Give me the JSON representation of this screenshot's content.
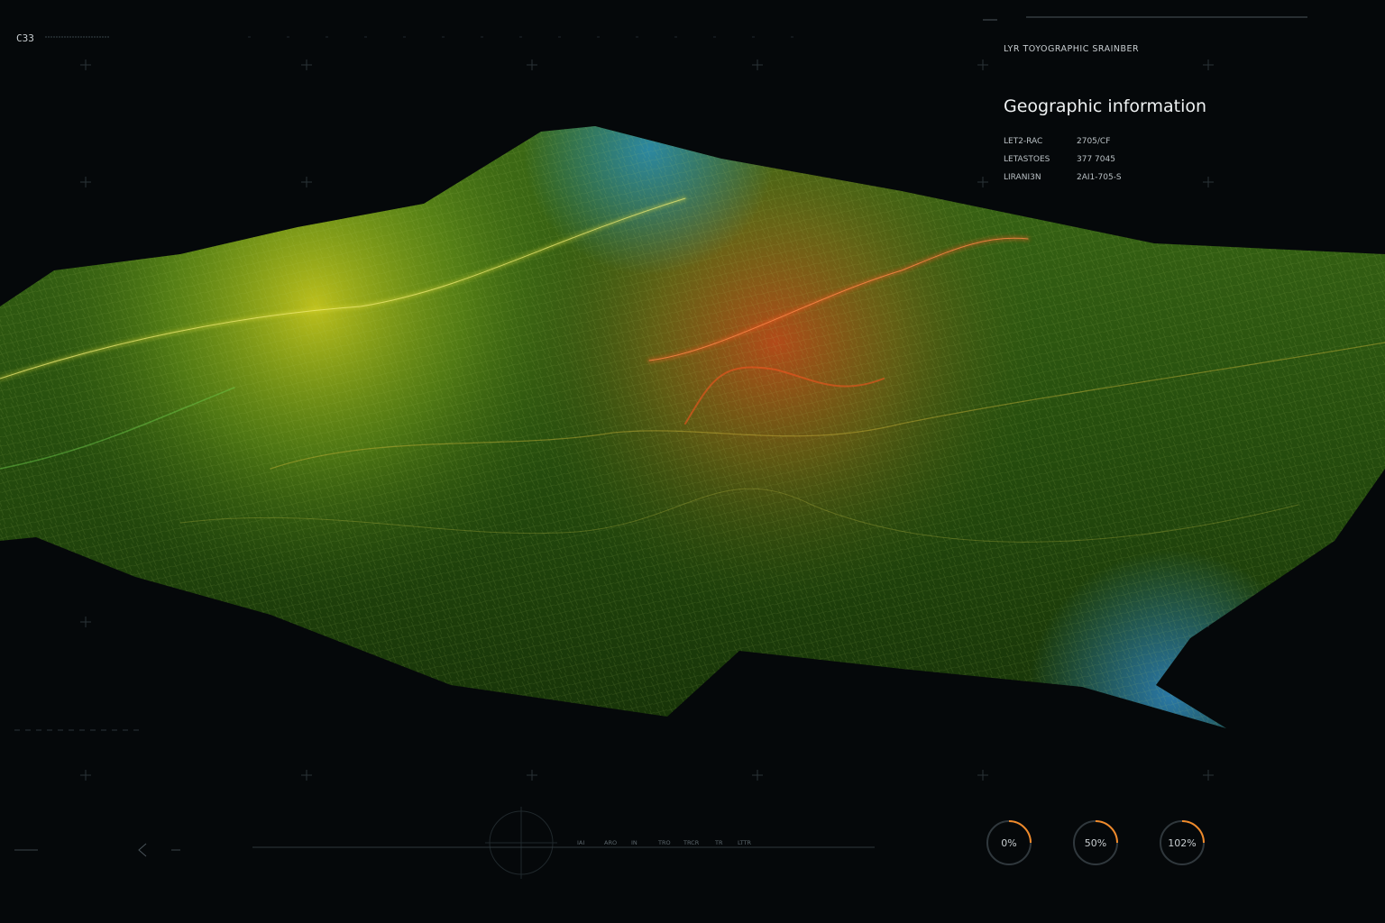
{
  "header": {
    "code": "C33",
    "subtitle": "LYR TOYOGRAPHIC SRAINBER"
  },
  "panel": {
    "title": "Geographic information",
    "rows": [
      [
        "LET2-RAC",
        "2705/CF"
      ],
      [
        "LETASTOES",
        "377 7045"
      ],
      [
        "LIRANI3N",
        "2AI1-705-S"
      ]
    ]
  },
  "gauges": [
    {
      "label": "0%"
    },
    {
      "label": "50%"
    },
    {
      "label": "102%"
    }
  ],
  "footer": {
    "ticks": [
      "IAI",
      "ARO",
      "IN",
      "TRO",
      "TRCR",
      "TR",
      "LTTR"
    ]
  }
}
